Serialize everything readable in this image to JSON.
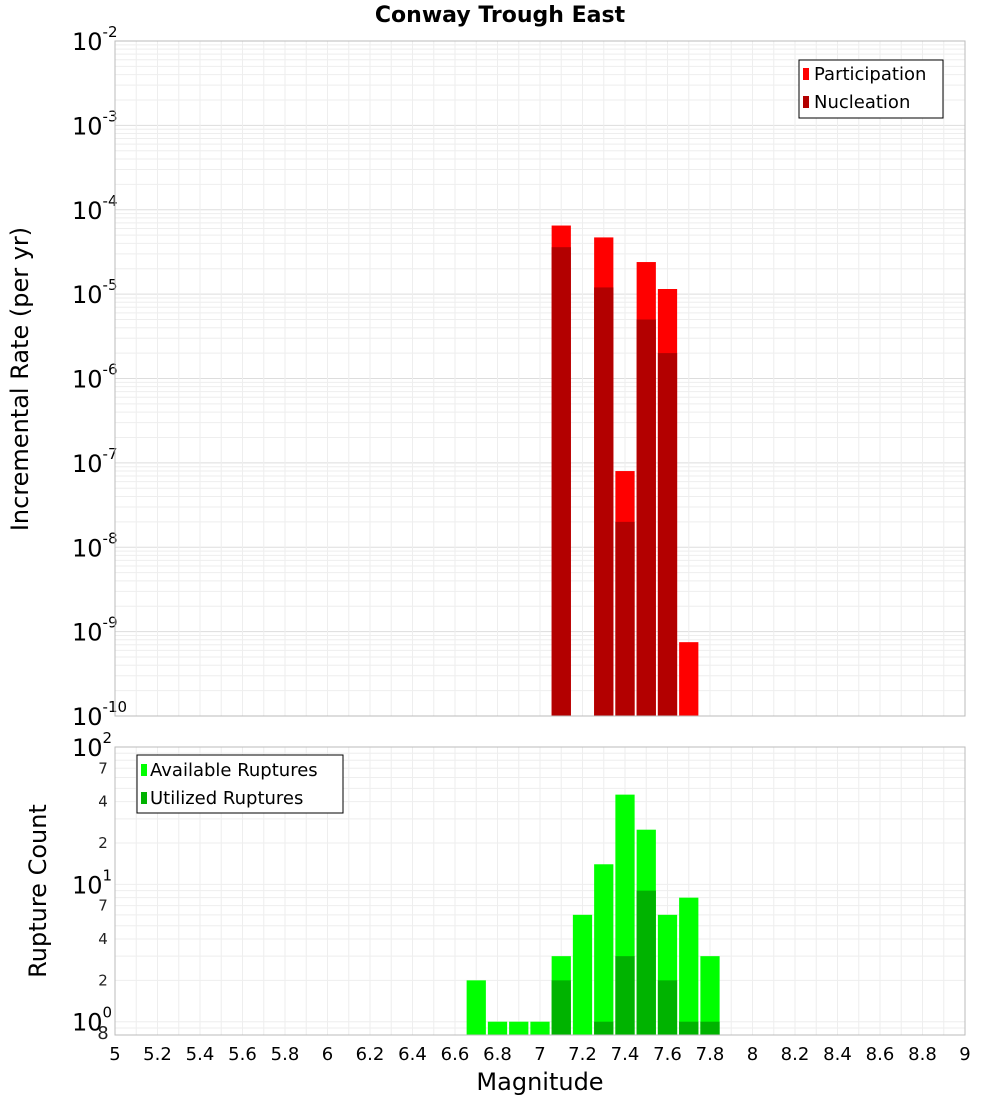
{
  "chart_data": [
    {
      "type": "bar",
      "title": "Conway Trough East",
      "ylabel": "Incremental Rate (per yr)",
      "yscale": "log",
      "ylim": [
        1e-10,
        0.01
      ],
      "ytick_exponents": [
        "-2",
        "-3",
        "-4",
        "-5",
        "-6",
        "-7",
        "-8",
        "-9",
        "-10"
      ],
      "ytick_base": "10",
      "legend": {
        "placement": "top-right",
        "entries": [
          "Participation",
          "Nucleation"
        ]
      },
      "colors": {
        "Participation": "#ff0000",
        "Nucleation": "#b30000"
      },
      "x": [
        7.1,
        7.3,
        7.4,
        7.5,
        7.6,
        7.7
      ],
      "series": [
        {
          "name": "Participation",
          "values": [
            6.5e-05,
            4.7e-05,
            8e-08,
            2.4e-05,
            1.15e-05,
            7.5e-10
          ]
        },
        {
          "name": "Nucleation",
          "values": [
            3.6e-05,
            1.2e-05,
            2e-08,
            5e-06,
            2e-06,
            null
          ]
        }
      ]
    },
    {
      "type": "bar",
      "xlabel": "Magnitude",
      "ylabel": "Rupture Count",
      "yscale": "log",
      "ylim": [
        0.8,
        100
      ],
      "ytick_exponents": [
        "2",
        "1",
        "0"
      ],
      "ytick_base": "10",
      "minor_tick_labels": [
        "7",
        "4",
        "2",
        "7",
        "4",
        "2",
        "8"
      ],
      "legend": {
        "placement": "top-left",
        "entries": [
          "Available Ruptures",
          "Utilized Ruptures"
        ]
      },
      "colors": {
        "Available Ruptures": "#00ff00",
        "Utilized Ruptures": "#00b300"
      },
      "x": [
        6.7,
        6.8,
        6.9,
        7.0,
        7.1,
        7.2,
        7.3,
        7.4,
        7.5,
        7.6,
        7.7,
        7.8
      ],
      "series": [
        {
          "name": "Available Ruptures",
          "values": [
            2,
            1,
            1,
            1,
            3,
            6,
            14,
            45,
            25,
            6,
            8,
            3
          ]
        },
        {
          "name": "Utilized Ruptures",
          "values": [
            null,
            null,
            null,
            null,
            2,
            null,
            1,
            3,
            9,
            2,
            1,
            1
          ]
        }
      ],
      "xlim": [
        5,
        9
      ],
      "xticks": [
        "5",
        "5.2",
        "5.4",
        "5.6",
        "5.8",
        "6",
        "6.2",
        "6.4",
        "6.6",
        "6.8",
        "7",
        "7.2",
        "7.4",
        "7.6",
        "7.8",
        "8",
        "8.2",
        "8.4",
        "8.6",
        "8.8",
        "9"
      ]
    }
  ]
}
